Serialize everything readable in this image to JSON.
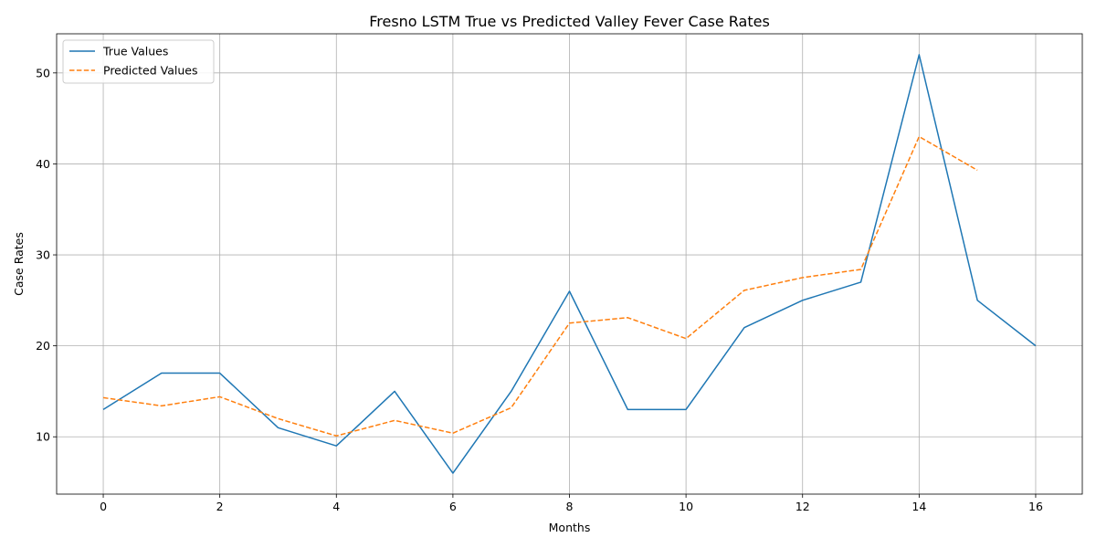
{
  "chart_data": {
    "type": "line",
    "title": "Fresno LSTM True vs Predicted Valley Fever Case Rates",
    "xlabel": "Months",
    "ylabel": "Case Rates",
    "xlim": [
      -0.8,
      16.8
    ],
    "ylim": [
      3.7,
      54.3
    ],
    "xticks": [
      0,
      2,
      4,
      6,
      8,
      10,
      12,
      14,
      16
    ],
    "yticks": [
      10,
      20,
      30,
      40,
      50
    ],
    "grid": true,
    "legend_position": "upper-left",
    "series": [
      {
        "name": "True Values",
        "color": "#1f77b4",
        "style": "solid",
        "x": [
          0,
          1,
          2,
          3,
          4,
          5,
          6,
          7,
          8,
          9,
          10,
          11,
          12,
          13,
          14,
          15,
          16
        ],
        "values": [
          13,
          17,
          17,
          11,
          9,
          15,
          6,
          15,
          26,
          13,
          13,
          22,
          25,
          27,
          52,
          25,
          20
        ]
      },
      {
        "name": "Predicted Values",
        "color": "#ff7f0e",
        "style": "dashed",
        "x": [
          0,
          1,
          2,
          3,
          4,
          5,
          6,
          7,
          8,
          9,
          10,
          11,
          12,
          13,
          14,
          15
        ],
        "values": [
          14.3,
          13.4,
          14.4,
          12.0,
          10.1,
          11.8,
          10.4,
          13.2,
          22.5,
          23.1,
          20.8,
          26.1,
          27.5,
          28.4,
          43.0,
          39.3
        ]
      }
    ]
  }
}
